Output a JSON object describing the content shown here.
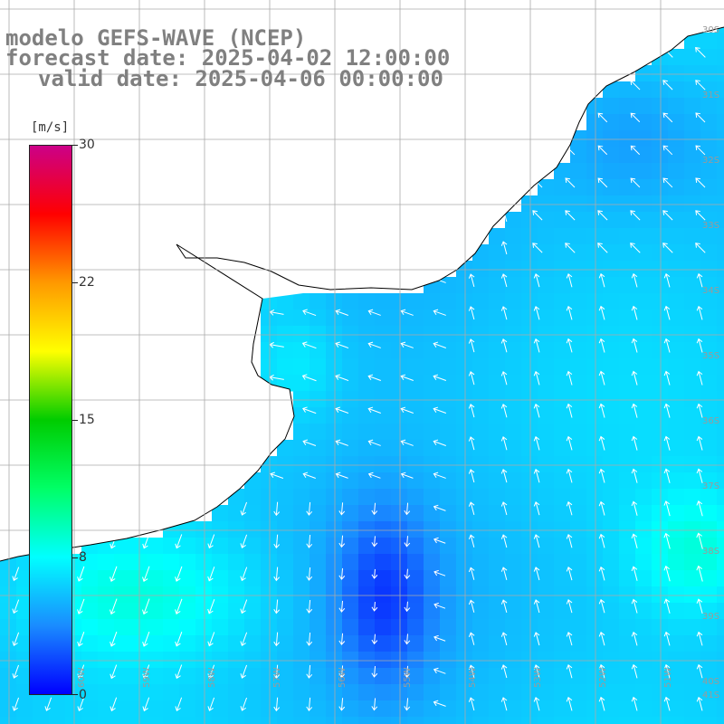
{
  "titles": [
    "modelo GEFS-WAVE (NCEP)",
    "forecast date: 2025-04-02 12:00:00",
    "valid date: 2025-04-06 00:00:00"
  ],
  "colorbar": {
    "unit": "[m/s]",
    "ticks": [
      "30",
      "22",
      "15",
      "8",
      "0"
    ],
    "range": [
      0,
      30
    ],
    "stops": [
      "#0000ff",
      "#1a8cff",
      "#00ffff",
      "#00ff66",
      "#00cc00",
      "#ffff00",
      "#ff9900",
      "#ff0000",
      "#cc0088"
    ]
  },
  "map": {
    "lat_labels": [
      "30S",
      "31S",
      "32S",
      "33S",
      "34S",
      "35S",
      "36S",
      "37S",
      "38S",
      "39S",
      "40S",
      "41S"
    ],
    "lon_labels": [
      "60W",
      "59W",
      "58W",
      "57W",
      "56W",
      "55W",
      "54W",
      "53W",
      "52W",
      "51W"
    ],
    "colors": {
      "land": "#ffffff",
      "coast": "#000000",
      "grid": "#aaaaaa",
      "arrow": "#ffffff",
      "title": "#808080"
    }
  }
}
